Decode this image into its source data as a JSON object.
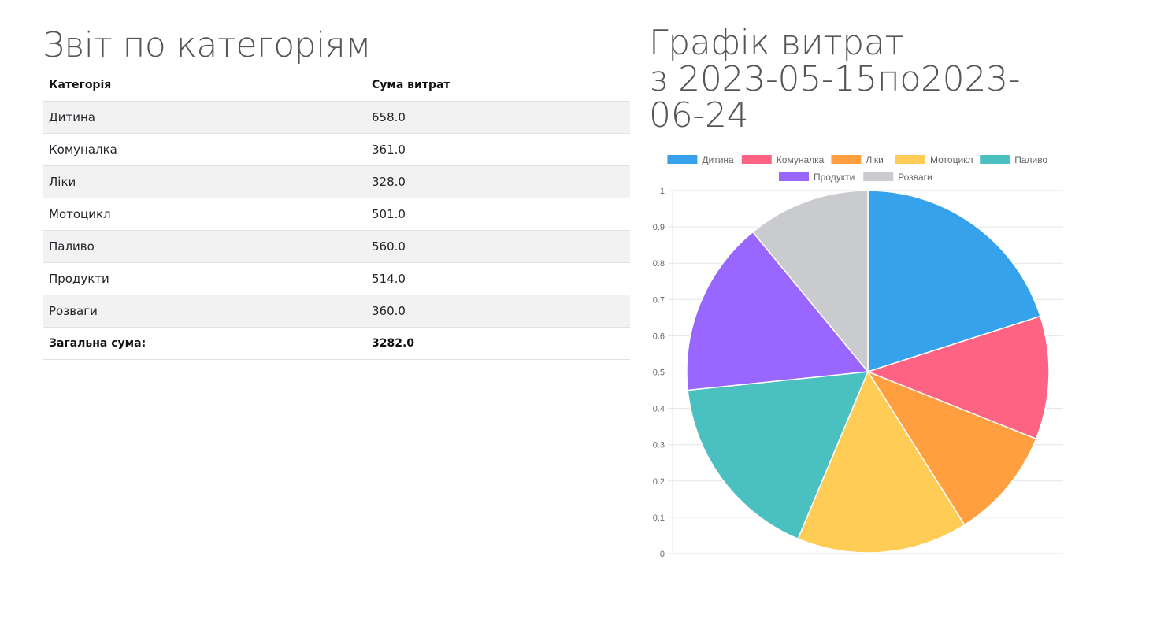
{
  "report": {
    "title": "Звіт по категоріям",
    "headers": [
      "Категорія",
      "Сума витрат"
    ],
    "rows": [
      [
        "Дитина",
        "658.0"
      ],
      [
        "Комуналка",
        "361.0"
      ],
      [
        "Ліки",
        "328.0"
      ],
      [
        "Мотоцикл",
        "501.0"
      ],
      [
        "Паливо",
        "560.0"
      ],
      [
        "Продукти",
        "514.0"
      ],
      [
        "Розваги",
        "360.0"
      ]
    ],
    "total_label": "Загальна сума:",
    "total_value": "3282.0"
  },
  "chart_title": {
    "line1": "Графік витрат",
    "line2": "з 2023-05-15по2023-",
    "line3": "06-24"
  },
  "chart_data": {
    "type": "pie",
    "categories": [
      "Дитина",
      "Комуналка",
      "Ліки",
      "Мотоцикл",
      "Паливо",
      "Продукти",
      "Розваги"
    ],
    "values": [
      658.0,
      361.0,
      328.0,
      501.0,
      560.0,
      514.0,
      360.0
    ],
    "colors": [
      "#36a2eb",
      "#ff6384",
      "#ff9f40",
      "#ffcd56",
      "#4bc0c0",
      "#9966ff",
      "#c9cbcf"
    ],
    "legend_position": "top",
    "yticks": [
      "0",
      "0.1",
      "0.2",
      "0.3",
      "0.4",
      "0.5",
      "0.6",
      "0.7",
      "0.8",
      "0.9",
      "1"
    ],
    "ylim": [
      0,
      1
    ],
    "grid": true
  }
}
